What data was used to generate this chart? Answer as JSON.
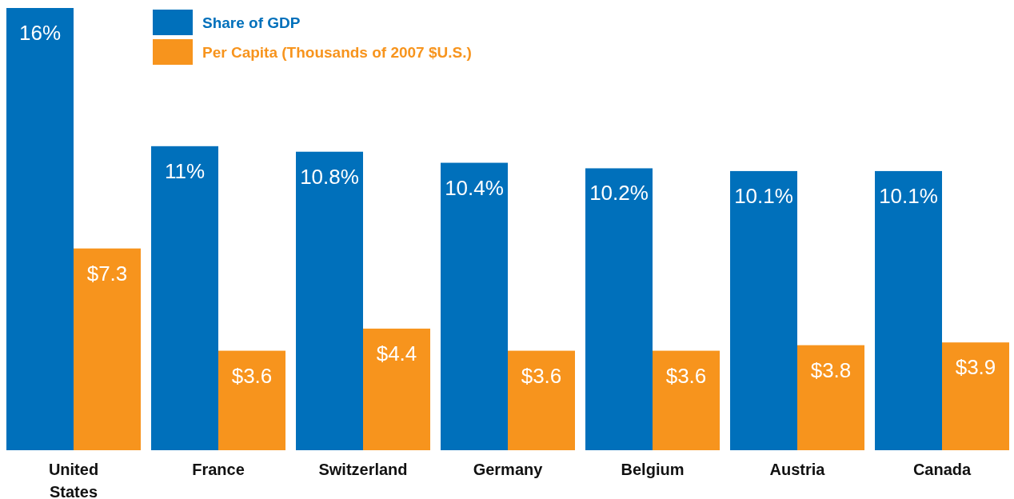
{
  "chart_data": {
    "type": "bar",
    "categories": [
      "United States",
      "France",
      "Switzerland",
      "Germany",
      "Belgium",
      "Austria",
      "Canada"
    ],
    "legend": "top left",
    "series": [
      {
        "name": "Share of GDP",
        "color": "#0070bb",
        "values": [
          16,
          11,
          10.8,
          10.4,
          10.2,
          10.1,
          10.1
        ],
        "value_labels": [
          "16%",
          "11%",
          "10.8%",
          "10.4%",
          "10.2%",
          "10.1%",
          "10.1%"
        ]
      },
      {
        "name": "Per Capita (Thousands of 2007 $U.S.)",
        "color": "#f7941d",
        "values": [
          7.3,
          3.6,
          4.4,
          3.6,
          3.6,
          3.8,
          3.9
        ],
        "value_labels": [
          "$7.3",
          "$3.6",
          "$4.4",
          "$3.6",
          "$3.6",
          "$3.8",
          "$3.9"
        ]
      }
    ]
  }
}
